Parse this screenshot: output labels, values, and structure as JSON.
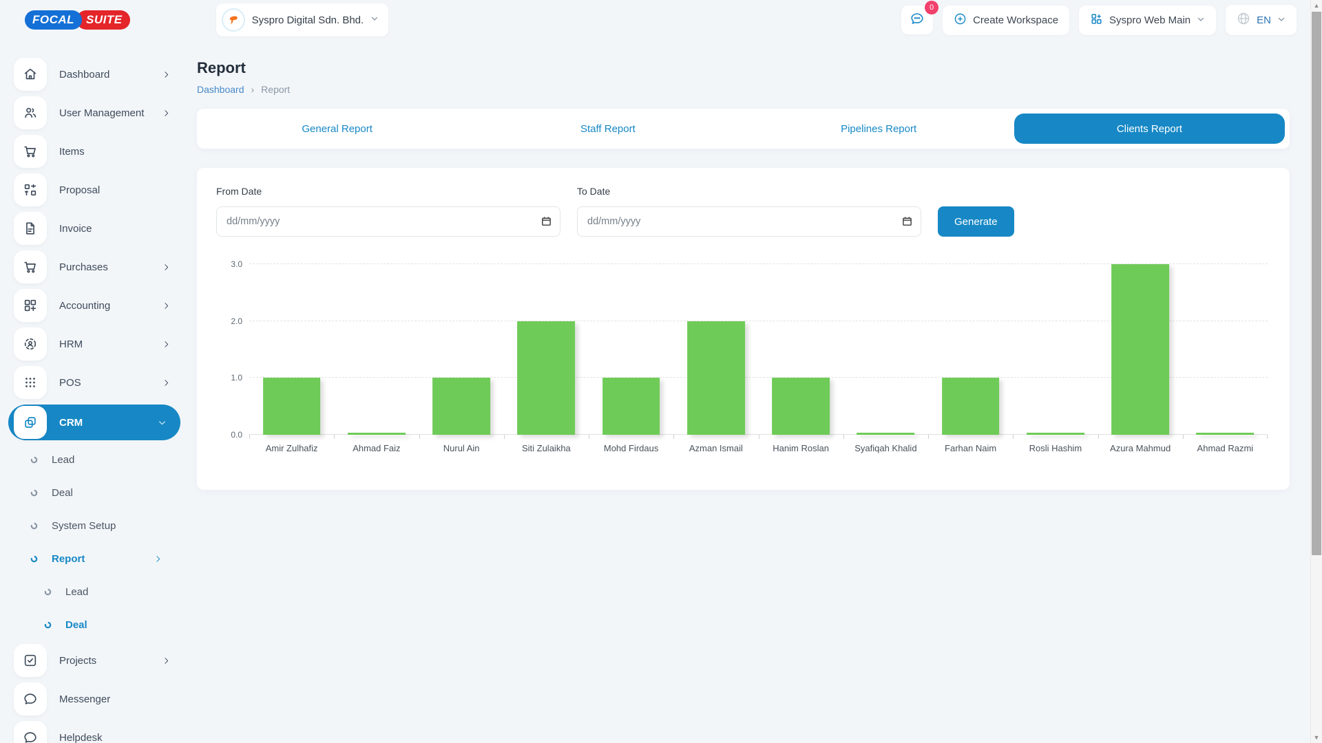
{
  "brand": {
    "logo_primary": "FOCAL",
    "logo_secondary": "SUITE"
  },
  "topbar": {
    "workspace_name": "Syspro Digital Sdn. Bhd.",
    "chat_badge": "0",
    "create_workspace_label": "Create Workspace",
    "app_switcher_label": "Syspro Web Main",
    "language_label": "EN"
  },
  "sidebar": {
    "items": [
      {
        "label": "Dashboard",
        "icon": "home-icon",
        "chevron": "right",
        "level": 0
      },
      {
        "label": "User Management",
        "icon": "users-icon",
        "chevron": "right",
        "level": 0
      },
      {
        "label": "Items",
        "icon": "cart-icon",
        "chevron": null,
        "level": 0
      },
      {
        "label": "Proposal",
        "icon": "qr-grid-icon",
        "chevron": null,
        "level": 0
      },
      {
        "label": "Invoice",
        "icon": "document-icon",
        "chevron": null,
        "level": 0
      },
      {
        "label": "Purchases",
        "icon": "cart-icon",
        "chevron": "right",
        "level": 0
      },
      {
        "label": "Accounting",
        "icon": "grid-plus-icon",
        "chevron": "right",
        "level": 0
      },
      {
        "label": "HRM",
        "icon": "focus-icon",
        "chevron": "right",
        "level": 0
      },
      {
        "label": "POS",
        "icon": "dots-grid-icon",
        "chevron": "right",
        "level": 0
      },
      {
        "label": "CRM",
        "icon": "overlap-squares-icon",
        "chevron": "down",
        "level": 0,
        "active": true
      },
      {
        "label": "Lead",
        "icon": "circle-bullet-icon",
        "chevron": null,
        "level": 1
      },
      {
        "label": "Deal",
        "icon": "circle-bullet-icon",
        "chevron": null,
        "level": 1
      },
      {
        "label": "System Setup",
        "icon": "circle-bullet-icon",
        "chevron": null,
        "level": 1
      },
      {
        "label": "Report",
        "icon": "circle-bullet-icon",
        "chevron": "right",
        "level": 1,
        "active": true
      },
      {
        "label": "Lead",
        "icon": "circle-bullet-icon",
        "chevron": null,
        "level": 2
      },
      {
        "label": "Deal",
        "icon": "circle-bullet-icon",
        "chevron": null,
        "level": 2,
        "active": true
      },
      {
        "label": "Projects",
        "icon": "check-square-icon",
        "chevron": "right",
        "level": 0
      },
      {
        "label": "Messenger",
        "icon": "chat-icon",
        "chevron": null,
        "level": 0
      },
      {
        "label": "Helpdesk",
        "icon": "chat-icon",
        "chevron": null,
        "level": 0
      }
    ]
  },
  "page": {
    "title": "Report",
    "breadcrumb_home": "Dashboard",
    "breadcrumb_separator": "›",
    "breadcrumb_current": "Report"
  },
  "tabs": {
    "items": [
      {
        "label": "General Report",
        "active": false
      },
      {
        "label": "Staff Report",
        "active": false
      },
      {
        "label": "Pipelines Report",
        "active": false
      },
      {
        "label": "Clients Report",
        "active": true
      }
    ]
  },
  "filters": {
    "from_date": {
      "label": "From Date",
      "placeholder": "dd/mm/yyyy",
      "value": ""
    },
    "to_date": {
      "label": "To Date",
      "placeholder": "dd/mm/yyyy",
      "value": ""
    },
    "generate_label": "Generate"
  },
  "chart_data": {
    "type": "bar",
    "title": "",
    "xlabel": "",
    "ylabel": "",
    "categories": [
      "Amir Zulhafiz",
      "Ahmad Faiz",
      "Nurul Ain",
      "Siti Zulaikha",
      "Mohd Firdaus",
      "Azman Ismail",
      "Hanim Roslan",
      "Syafiqah Khalid",
      "Farhan Naim",
      "Rosli Hashim",
      "Azura Mahmud",
      "Ahmad Razmi"
    ],
    "values": [
      1,
      0,
      1,
      2,
      1,
      2,
      1,
      0,
      1,
      0,
      3,
      0
    ],
    "ylim": [
      0,
      3
    ],
    "yticks": [
      "0.0",
      "1.0",
      "2.0",
      "3.0"
    ],
    "grid": "horizontal-dashed",
    "legend": "none",
    "bar_color": "#6fcb58"
  },
  "colors": {
    "accent_blue": "#1788c5",
    "bar_green": "#6fcb58",
    "badge_pink": "#f1416c",
    "logo_blue": "#1470d6",
    "logo_red": "#e42529",
    "page_background": "#f3f6f9"
  }
}
